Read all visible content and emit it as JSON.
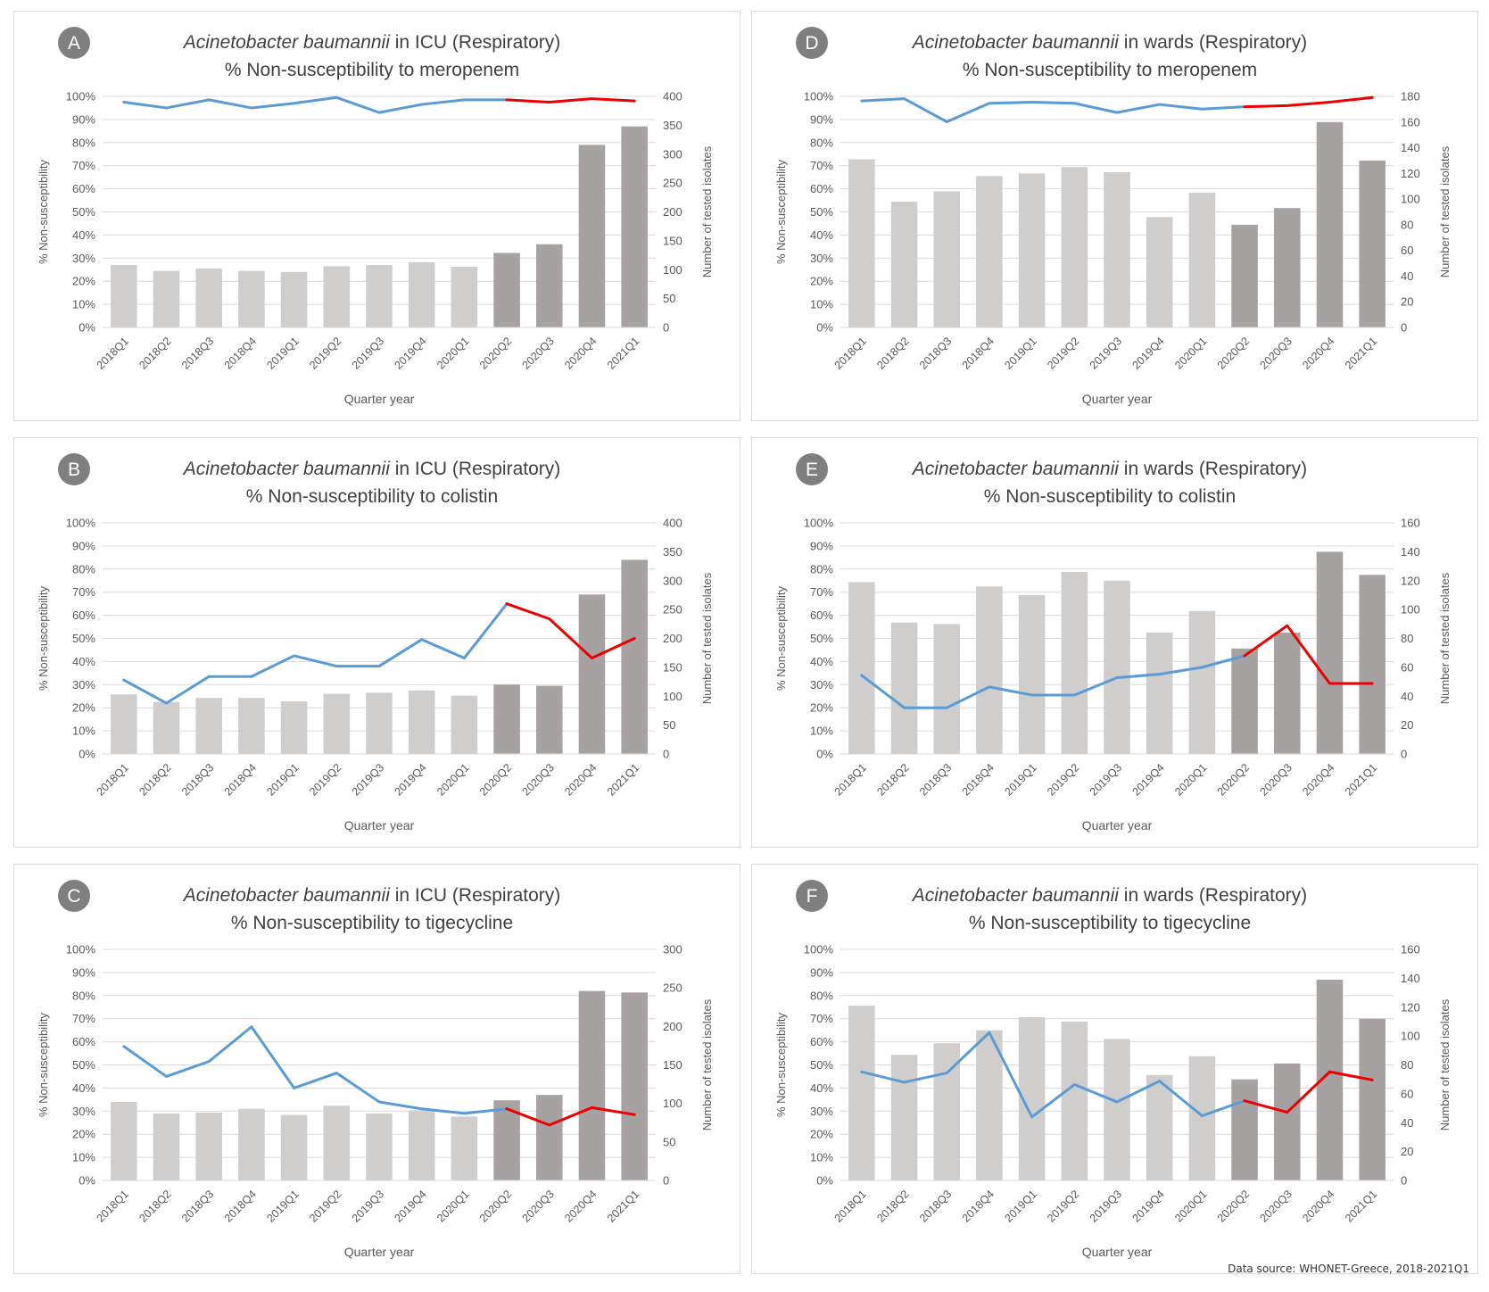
{
  "source": "Data source: WHONET-Greece, 2018-2021Q1",
  "categories": [
    "2018Q1",
    "2018Q2",
    "2018Q3",
    "2018Q4",
    "2019Q1",
    "2019Q2",
    "2019Q3",
    "2019Q4",
    "2020Q1",
    "2020Q2",
    "2020Q3",
    "2020Q4",
    "2021Q1"
  ],
  "colors": {
    "bar_pre": "#d0cdcd",
    "bar_covid": "#a6a2a2",
    "line_pre": "#5b9bd5",
    "line_covid": "#ee0000",
    "badge": "#7f7f7f",
    "grid": "#d9d9d9",
    "text": "#595959"
  },
  "chart_data": [
    {
      "panel": "A",
      "type": "bar+line",
      "title_italic": "Acinetobacter baumannii",
      "title_rest": " in ICU (Respiratory)",
      "subtitle": "% Non-susceptibility to meropenem",
      "xlabel": "Quarter year",
      "ylabel": "% Non-susceptibility",
      "y2label": "Number of tested isolates",
      "ylim": [
        0,
        100
      ],
      "y2lim": [
        0,
        400
      ],
      "y2step": 50,
      "y_ticks": [
        "0%",
        "10%",
        "20%",
        "30%",
        "40%",
        "50%",
        "60%",
        "70%",
        "80%",
        "90%",
        "100%"
      ],
      "y2_ticks": [
        "0",
        "50",
        "100",
        "150",
        "200",
        "250",
        "300",
        "350",
        "400"
      ],
      "bars": [
        108,
        98,
        102,
        98,
        96,
        106,
        108,
        113,
        105,
        129,
        144,
        316,
        348
      ],
      "line": [
        97.5,
        95,
        98.5,
        95,
        97,
        99.5,
        93,
        96.5,
        98.5,
        98.5,
        97.5,
        99,
        98
      ]
    },
    {
      "panel": "B",
      "type": "bar+line",
      "title_italic": "Acinetobacter baumannii",
      "title_rest": " in ICU (Respiratory)",
      "subtitle": "% Non-susceptibility to colistin",
      "xlabel": "Quarter year",
      "ylabel": "% Non-susceptibility",
      "y2label": "Number of tested isolates",
      "ylim": [
        0,
        100
      ],
      "y2lim": [
        0,
        400
      ],
      "y2step": 50,
      "y_ticks": [
        "0%",
        "10%",
        "20%",
        "30%",
        "40%",
        "50%",
        "60%",
        "70%",
        "80%",
        "90%",
        "100%"
      ],
      "y2_ticks": [
        "0",
        "50",
        "100",
        "150",
        "200",
        "250",
        "300",
        "350",
        "400"
      ],
      "bars": [
        103,
        90,
        97,
        97,
        91,
        104,
        106,
        110,
        101,
        120,
        118,
        276,
        336
      ],
      "line": [
        32,
        22,
        33.5,
        33.5,
        42.5,
        38,
        38,
        49.5,
        41.5,
        65,
        58.5,
        41.5,
        50
      ]
    },
    {
      "panel": "C",
      "type": "bar+line",
      "title_italic": "Acinetobacter baumannii",
      "title_rest": " in ICU (Respiratory)",
      "subtitle": "% Non-susceptibility to tigecycline",
      "xlabel": "Quarter year",
      "ylabel": "% Non-susceptibility",
      "y2label": "Number of tested isolates",
      "ylim": [
        0,
        100
      ],
      "y2lim": [
        0,
        300
      ],
      "y2step": 50,
      "y_ticks": [
        "0%",
        "10%",
        "20%",
        "30%",
        "40%",
        "50%",
        "60%",
        "70%",
        "80%",
        "90%",
        "100%"
      ],
      "y2_ticks": [
        "0",
        "50",
        "100",
        "150",
        "200",
        "250",
        "300"
      ],
      "bars": [
        102,
        87,
        88,
        93,
        85,
        97,
        87,
        91,
        83,
        104,
        111,
        246,
        244
      ],
      "line": [
        58,
        45,
        51.5,
        66.5,
        40,
        46.5,
        34,
        31,
        29,
        31,
        24,
        31.5,
        28.5
      ]
    },
    {
      "panel": "D",
      "type": "bar+line",
      "title_italic": "Acinetobacter baumannii",
      "title_rest": " in wards (Respiratory)",
      "subtitle": "% Non-susceptibility to meropenem",
      "xlabel": "Quarter year",
      "ylabel": "% Non-susceptibility",
      "y2label": "Number of tested isolates",
      "ylim": [
        0,
        100
      ],
      "y2lim": [
        0,
        180
      ],
      "y2step": 20,
      "y_ticks": [
        "0%",
        "10%",
        "20%",
        "30%",
        "40%",
        "50%",
        "60%",
        "70%",
        "80%",
        "90%",
        "100%"
      ],
      "y2_ticks": [
        "0",
        "20",
        "40",
        "60",
        "80",
        "100",
        "120",
        "140",
        "160",
        "180"
      ],
      "bars": [
        131,
        98,
        106,
        118,
        120,
        125,
        121,
        86,
        105,
        80,
        93,
        160,
        130
      ],
      "line": [
        98,
        99,
        89,
        97,
        97.5,
        97,
        93,
        96.5,
        94.5,
        95.5,
        96,
        97.5,
        99.5
      ]
    },
    {
      "panel": "E",
      "type": "bar+line",
      "title_italic": "Acinetobacter baumannii",
      "title_rest": " in wards (Respiratory)",
      "subtitle": "% Non-susceptibility to colistin",
      "xlabel": "Quarter year",
      "ylabel": "% Non-susceptibility",
      "y2label": "Number of tested isolates",
      "ylim": [
        0,
        100
      ],
      "y2lim": [
        0,
        160
      ],
      "y2step": 20,
      "y_ticks": [
        "0%",
        "10%",
        "20%",
        "30%",
        "40%",
        "50%",
        "60%",
        "70%",
        "80%",
        "90%",
        "100%"
      ],
      "y2_ticks": [
        "0",
        "20",
        "40",
        "60",
        "80",
        "100",
        "120",
        "140",
        "160"
      ],
      "bars": [
        119,
        91,
        90,
        116,
        110,
        126,
        120,
        84,
        99,
        73,
        84,
        140,
        124
      ],
      "line": [
        34,
        20,
        20,
        29,
        25.5,
        25.5,
        33,
        34.5,
        37.5,
        42.5,
        55.5,
        30.5,
        30.5
      ]
    },
    {
      "panel": "F",
      "type": "bar+line",
      "title_italic": "Acinetobacter baumannii",
      "title_rest": " in wards (Respiratory)",
      "subtitle": "% Non-susceptibility to tigecycline",
      "xlabel": "Quarter year",
      "ylabel": "% Non-susceptibility",
      "y2label": "Number of tested isolates",
      "ylim": [
        0,
        100
      ],
      "y2lim": [
        0,
        160
      ],
      "y2step": 20,
      "y_ticks": [
        "0%",
        "10%",
        "20%",
        "30%",
        "40%",
        "50%",
        "60%",
        "70%",
        "80%",
        "90%",
        "100%"
      ],
      "y2_ticks": [
        "0",
        "20",
        "40",
        "60",
        "80",
        "100",
        "120",
        "140",
        "160"
      ],
      "bars": [
        121,
        87,
        95,
        104,
        113,
        110,
        98,
        73,
        86,
        70,
        81,
        139,
        112
      ],
      "line": [
        47,
        42.5,
        46.5,
        64,
        27.5,
        41.5,
        34,
        43,
        28,
        34.5,
        29.5,
        47,
        43.5
      ]
    }
  ]
}
